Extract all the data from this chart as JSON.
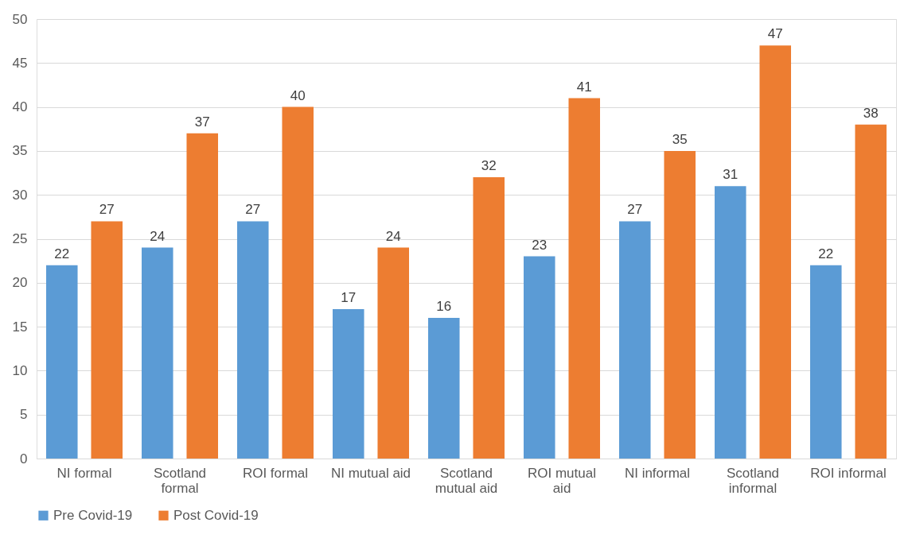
{
  "chart_data": {
    "type": "bar",
    "categories": [
      "NI formal",
      "Scotland formal",
      "ROI formal",
      "NI mutual aid",
      "Scotland mutual aid",
      "ROI mutual aid",
      "NI informal",
      "Scotland informal",
      "ROI informal"
    ],
    "series": [
      {
        "name": "Pre Covid-19",
        "color": "#5b9bd5",
        "values": [
          22,
          24,
          27,
          17,
          16,
          23,
          27,
          31,
          22
        ]
      },
      {
        "name": "Post Covid-19",
        "color": "#ed7d31",
        "values": [
          27,
          37,
          40,
          24,
          32,
          41,
          35,
          47,
          38
        ]
      }
    ],
    "ylim": [
      0,
      50
    ],
    "yticks": [
      0,
      5,
      10,
      15,
      20,
      25,
      30,
      35,
      40,
      45,
      50
    ],
    "grid": "y",
    "legend": "bottom",
    "data_labels": true
  }
}
